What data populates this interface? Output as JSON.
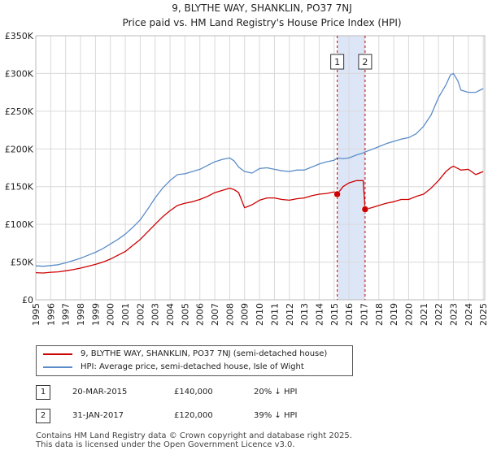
{
  "chart_data": {
    "type": "line",
    "title": "9, BLYTHE WAY, SHANKLIN, PO37 7NJ",
    "subtitle": "Price paid vs. HM Land Registry's House Price Index (HPI)",
    "xlim": [
      1995,
      2025.1
    ],
    "ylim": [
      0,
      350000
    ],
    "x_ticks": [
      "1995",
      "1996",
      "1997",
      "1998",
      "1999",
      "2000",
      "2001",
      "2002",
      "2003",
      "2004",
      "2005",
      "2006",
      "2007",
      "2008",
      "2009",
      "2010",
      "2011",
      "2012",
      "2013",
      "2014",
      "2015",
      "2016",
      "2017",
      "2018",
      "2019",
      "2020",
      "2021",
      "2022",
      "2023",
      "2024",
      "2025"
    ],
    "y_ticks": [
      {
        "value": 0,
        "label": "£0"
      },
      {
        "value": 50000,
        "label": "£50K"
      },
      {
        "value": 100000,
        "label": "£100K"
      },
      {
        "value": 150000,
        "label": "£150K"
      },
      {
        "value": 200000,
        "label": "£200K"
      },
      {
        "value": 250000,
        "label": "£250K"
      },
      {
        "value": 300000,
        "label": "£300K"
      },
      {
        "value": 350000,
        "label": "£350K"
      }
    ],
    "grid": true,
    "shaded_region": {
      "x_start": 2015.21,
      "x_end": 2017.08,
      "color": "#dde6f7"
    },
    "series": [
      {
        "name": "9, BLYTHE WAY, SHANKLIN, PO37 7NJ (semi-detached house)",
        "color": "#cc0000",
        "x": [
          1995.0,
          1995.5,
          1996.0,
          1996.5,
          1997.0,
          1997.5,
          1998.0,
          1998.5,
          1999.0,
          1999.5,
          2000.0,
          2000.5,
          2001.0,
          2001.5,
          2002.0,
          2002.5,
          2003.0,
          2003.5,
          2004.0,
          2004.5,
          2005.0,
          2005.5,
          2006.0,
          2006.5,
          2007.0,
          2007.5,
          2008.0,
          2008.3,
          2008.6,
          2009.0,
          2009.5,
          2010.0,
          2010.5,
          2011.0,
          2011.5,
          2012.0,
          2012.5,
          2013.0,
          2013.5,
          2014.0,
          2014.5,
          2015.0,
          2015.21,
          2015.6,
          2016.0,
          2016.5,
          2016.95,
          2017.08,
          2017.5,
          2018.0,
          2018.5,
          2019.0,
          2019.5,
          2020.0,
          2020.5,
          2021.0,
          2021.5,
          2022.0,
          2022.5,
          2022.8,
          2023.0,
          2023.5,
          2024.0,
          2024.5,
          2025.0
        ],
        "y": [
          36000,
          35500,
          36500,
          37000,
          38500,
          40000,
          42000,
          44500,
          47000,
          50000,
          54000,
          59000,
          64000,
          72000,
          80000,
          90000,
          100000,
          110000,
          118000,
          125000,
          128000,
          130000,
          133000,
          137000,
          142000,
          145000,
          148000,
          146000,
          142000,
          122000,
          126000,
          132000,
          135000,
          135000,
          133000,
          132000,
          134000,
          135000,
          138000,
          140000,
          141000,
          143000,
          140000,
          150000,
          155000,
          158000,
          158000,
          120000,
          122000,
          125000,
          128000,
          130000,
          133000,
          133000,
          137000,
          140000,
          148000,
          158000,
          170000,
          175000,
          177000,
          172000,
          173000,
          166000,
          170000
        ]
      },
      {
        "name": "HPI: Average price, semi-detached house, Isle of Wight",
        "color": "#5b8cc9",
        "x": [
          1995.0,
          1995.5,
          1996.0,
          1996.5,
          1997.0,
          1997.5,
          1998.0,
          1998.5,
          1999.0,
          1999.5,
          2000.0,
          2000.5,
          2001.0,
          2001.5,
          2002.0,
          2002.5,
          2003.0,
          2003.5,
          2004.0,
          2004.5,
          2005.0,
          2005.5,
          2006.0,
          2006.5,
          2007.0,
          2007.5,
          2008.0,
          2008.3,
          2008.6,
          2009.0,
          2009.5,
          2010.0,
          2010.5,
          2011.0,
          2011.5,
          2012.0,
          2012.5,
          2013.0,
          2013.5,
          2014.0,
          2014.5,
          2015.0,
          2015.21,
          2015.6,
          2016.0,
          2016.5,
          2017.0,
          2017.08,
          2017.5,
          2018.0,
          2018.5,
          2019.0,
          2019.5,
          2020.0,
          2020.5,
          2021.0,
          2021.5,
          2022.0,
          2022.5,
          2022.8,
          2023.0,
          2023.3,
          2023.5,
          2024.0,
          2024.5,
          2025.0
        ],
        "y": [
          45000,
          44500,
          45500,
          46500,
          49000,
          52000,
          55000,
          59000,
          63000,
          68000,
          74000,
          80000,
          87000,
          96000,
          106000,
          120000,
          135000,
          148000,
          158000,
          166000,
          167000,
          170000,
          173000,
          178000,
          183000,
          186000,
          188000,
          184000,
          176000,
          170000,
          168000,
          174000,
          175000,
          173000,
          171000,
          170000,
          172000,
          172000,
          176000,
          180000,
          183000,
          185000,
          188000,
          187000,
          188000,
          192000,
          195000,
          196000,
          199000,
          203000,
          207000,
          210000,
          213000,
          215000,
          220000,
          230000,
          245000,
          268000,
          285000,
          298000,
          300000,
          290000,
          278000,
          275000,
          275000,
          280000
        ]
      }
    ],
    "annotations": [
      {
        "label": "1",
        "x": 2015.21,
        "y": 140000,
        "date": "20-MAR-2015",
        "price": "£140,000",
        "hpi": "20% ↓ HPI"
      },
      {
        "label": "2",
        "x": 2017.08,
        "y": 120000,
        "date": "31-JAN-2017",
        "price": "£120,000",
        "hpi": "39% ↓ HPI"
      }
    ]
  },
  "footer": {
    "line1": "Contains HM Land Registry data © Crown copyright and database right 2025.",
    "line2": "This data is licensed under the Open Government Licence v3.0."
  }
}
